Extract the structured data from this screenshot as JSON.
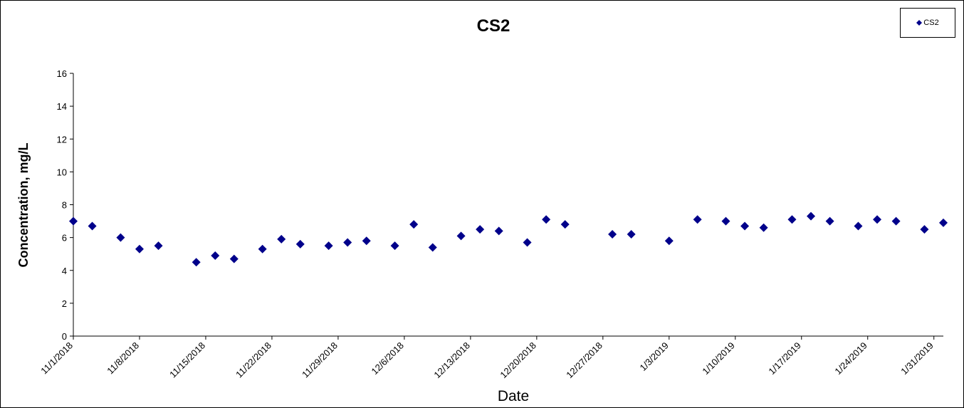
{
  "chart_data": {
    "type": "scatter",
    "title": "CS2",
    "xlabel": "Date",
    "ylabel": "Concentration, mg/L",
    "ylim": [
      0,
      16
    ],
    "yticks": [
      0,
      2,
      4,
      6,
      8,
      10,
      12,
      14,
      16
    ],
    "xlim": [
      "2018-11-01",
      "2019-02-01"
    ],
    "xticks": [
      "11/1/2018",
      "11/8/2018",
      "11/15/2018",
      "11/22/2018",
      "11/29/2018",
      "12/6/2018",
      "12/13/2018",
      "12/20/2018",
      "12/27/2018",
      "1/3/2019",
      "1/10/2019",
      "1/17/2019",
      "1/24/2019",
      "1/31/2019"
    ],
    "legend": "top-right",
    "grid": false,
    "series": [
      {
        "name": "CS2",
        "color": "#00008B",
        "marker": "diamond",
        "points": [
          {
            "x": "2018-11-01",
            "y": 7.0
          },
          {
            "x": "2018-11-03",
            "y": 6.7
          },
          {
            "x": "2018-11-06",
            "y": 6.0
          },
          {
            "x": "2018-11-08",
            "y": 5.3
          },
          {
            "x": "2018-11-10",
            "y": 5.5
          },
          {
            "x": "2018-11-14",
            "y": 4.5
          },
          {
            "x": "2018-11-16",
            "y": 4.9
          },
          {
            "x": "2018-11-18",
            "y": 4.7
          },
          {
            "x": "2018-11-21",
            "y": 5.3
          },
          {
            "x": "2018-11-23",
            "y": 5.9
          },
          {
            "x": "2018-11-25",
            "y": 5.6
          },
          {
            "x": "2018-11-28",
            "y": 5.5
          },
          {
            "x": "2018-11-30",
            "y": 5.7
          },
          {
            "x": "2018-12-02",
            "y": 5.8
          },
          {
            "x": "2018-12-05",
            "y": 5.5
          },
          {
            "x": "2018-12-07",
            "y": 6.8
          },
          {
            "x": "2018-12-09",
            "y": 5.4
          },
          {
            "x": "2018-12-12",
            "y": 6.1
          },
          {
            "x": "2018-12-14",
            "y": 6.5
          },
          {
            "x": "2018-12-16",
            "y": 6.4
          },
          {
            "x": "2018-12-19",
            "y": 5.7
          },
          {
            "x": "2018-12-21",
            "y": 7.1
          },
          {
            "x": "2018-12-23",
            "y": 6.8
          },
          {
            "x": "2018-12-28",
            "y": 6.2
          },
          {
            "x": "2018-12-30",
            "y": 6.2
          },
          {
            "x": "2019-01-03",
            "y": 5.8
          },
          {
            "x": "2019-01-06",
            "y": 7.1
          },
          {
            "x": "2019-01-09",
            "y": 7.0
          },
          {
            "x": "2019-01-11",
            "y": 6.7
          },
          {
            "x": "2019-01-13",
            "y": 6.6
          },
          {
            "x": "2019-01-16",
            "y": 7.1
          },
          {
            "x": "2019-01-18",
            "y": 7.3
          },
          {
            "x": "2019-01-20",
            "y": 7.0
          },
          {
            "x": "2019-01-23",
            "y": 6.7
          },
          {
            "x": "2019-01-25",
            "y": 7.1
          },
          {
            "x": "2019-01-27",
            "y": 7.0
          },
          {
            "x": "2019-01-30",
            "y": 6.5
          },
          {
            "x": "2019-02-01",
            "y": 6.9
          }
        ]
      }
    ]
  }
}
